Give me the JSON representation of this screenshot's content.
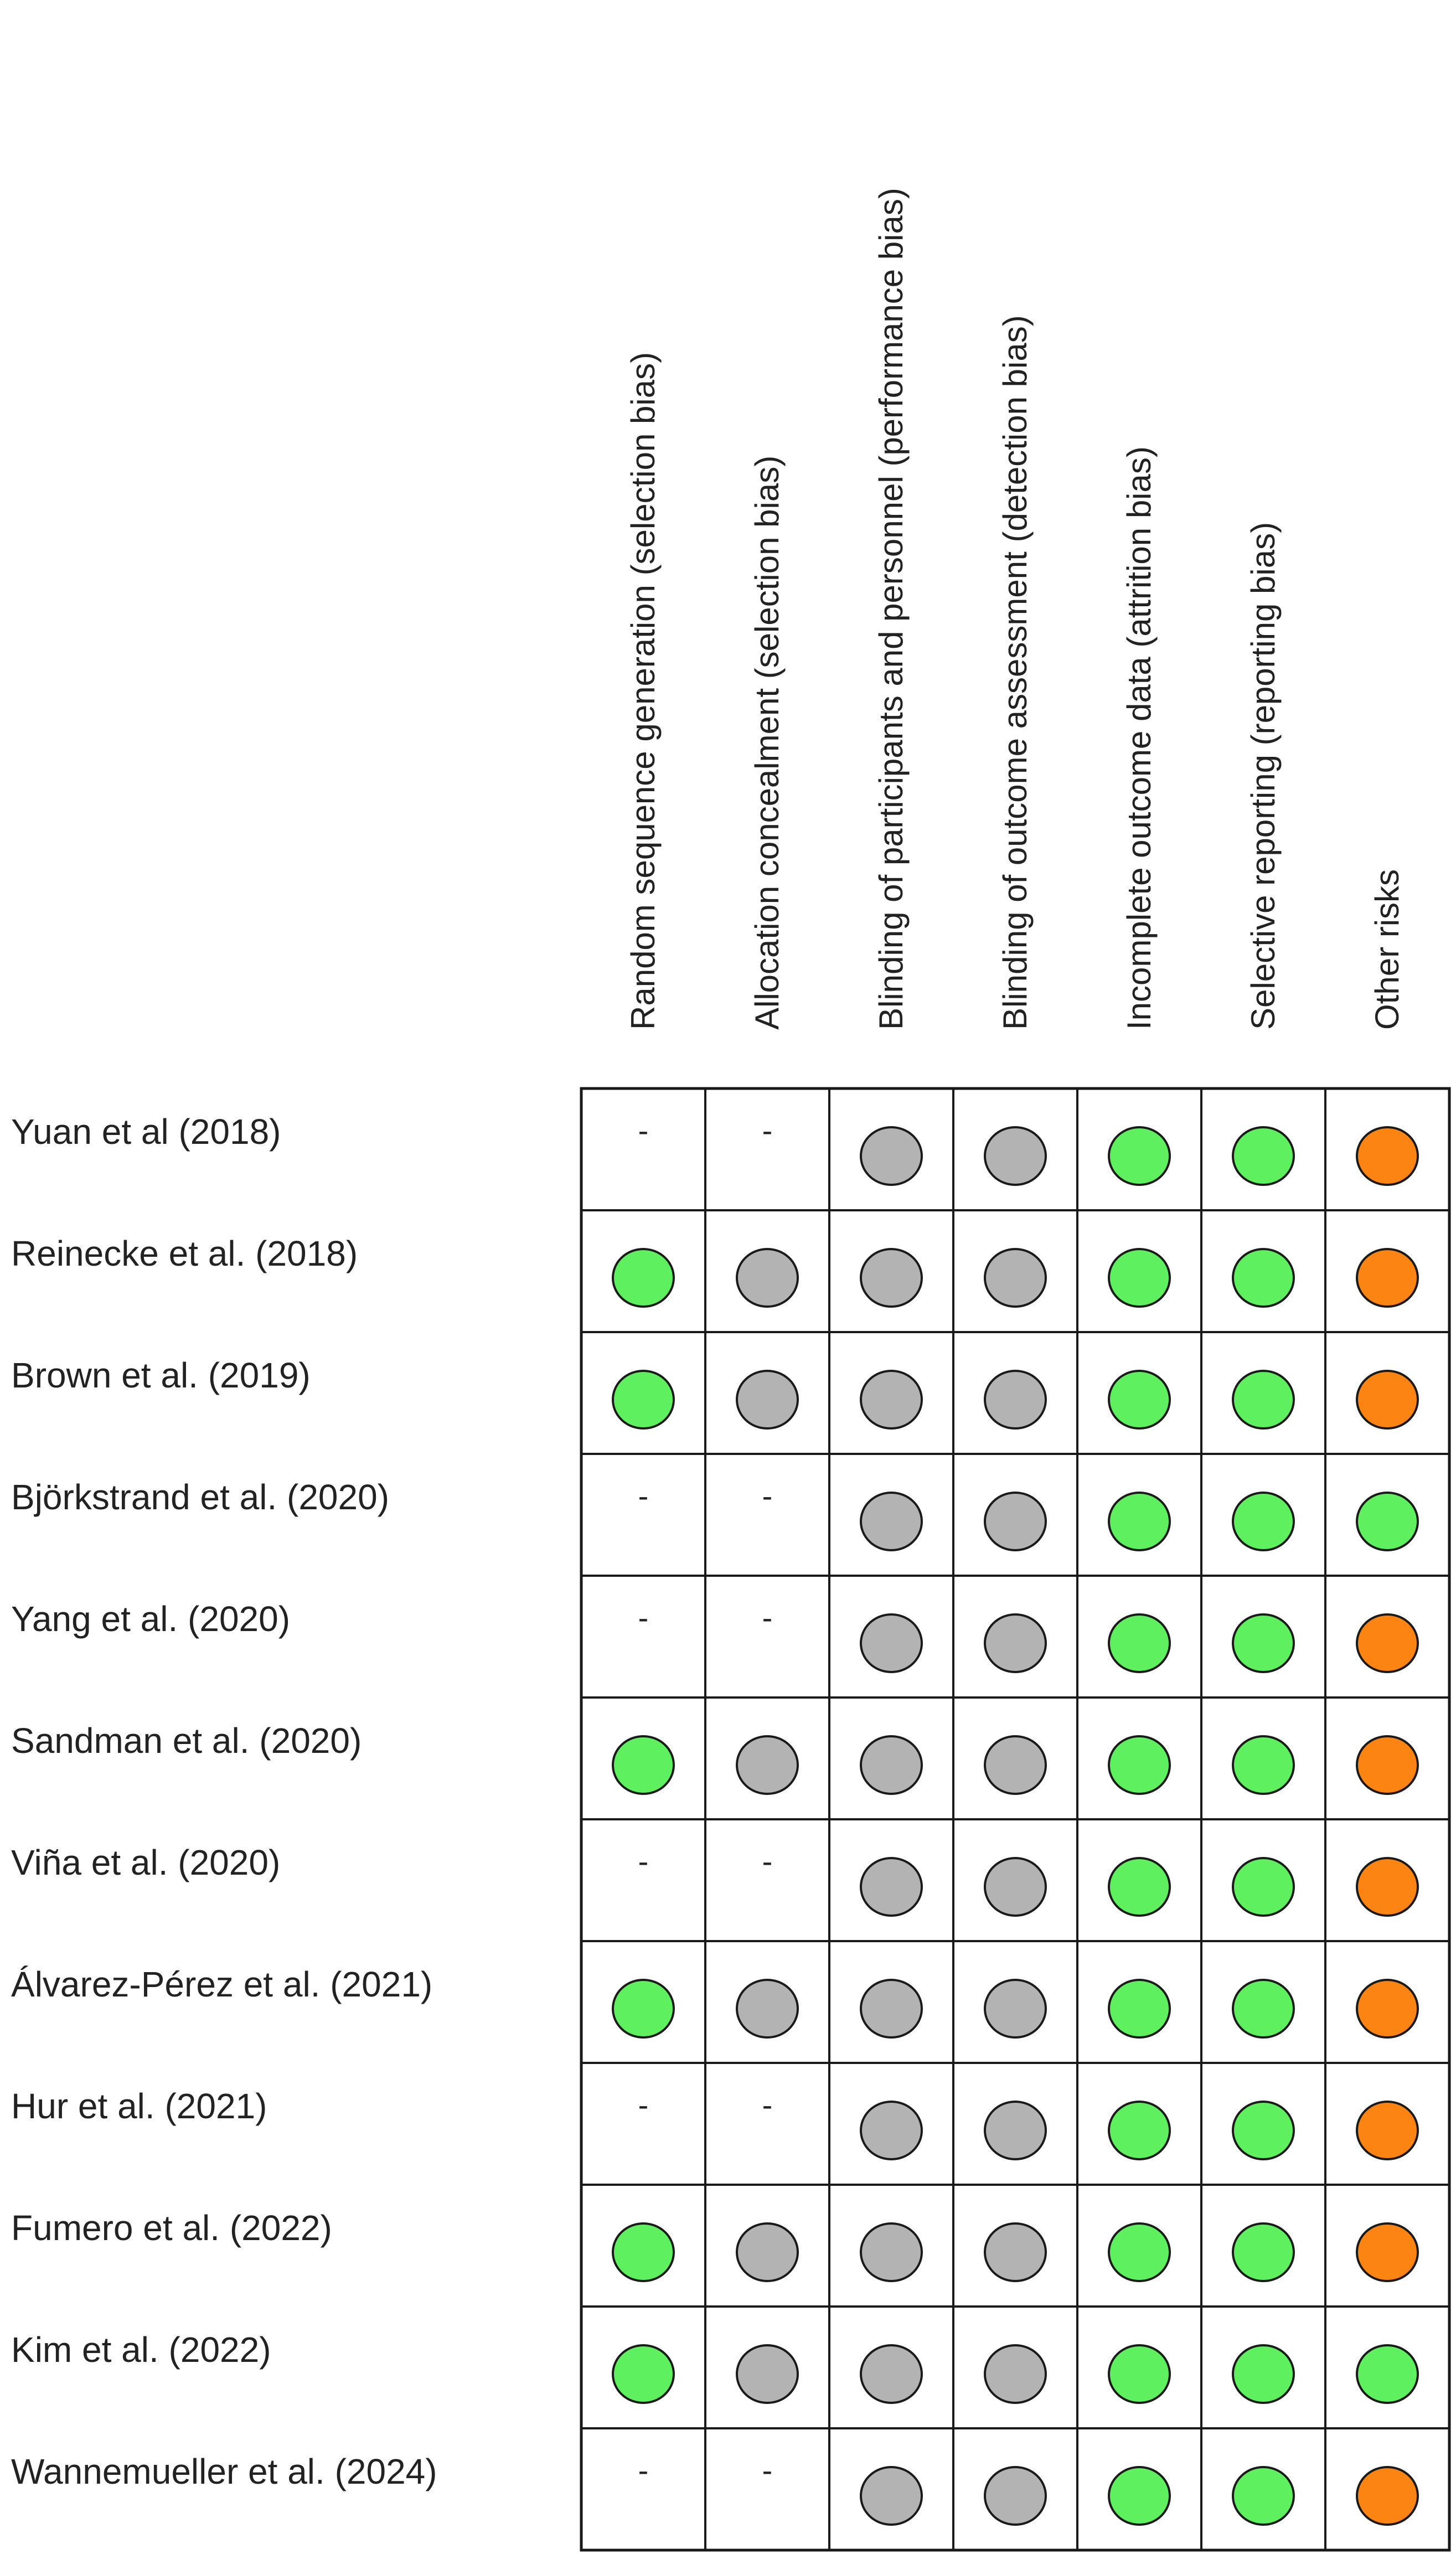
{
  "columns": [
    "Random sequence generation (selection bias)",
    "Allocation concealment (selection bias)",
    "Blinding of participants and personnel (performance bias)",
    "Blinding of outcome assessment (detection bias)",
    "Incomplete outcome data (attrition bias)",
    "Selective reporting (reporting bias)",
    "Other risks"
  ],
  "legend_colors": {
    "low": "#5ef05e",
    "unclear": "#b3b3b3",
    "high": "#fb8412"
  },
  "not_assessed_symbol": "-",
  "rows": [
    {
      "study": "Yuan et al (2018)",
      "ratings": [
        "-",
        "-",
        "unclear",
        "unclear",
        "low",
        "low",
        "high"
      ]
    },
    {
      "study": "Reinecke et al. (2018)",
      "ratings": [
        "low",
        "unclear",
        "unclear",
        "unclear",
        "low",
        "low",
        "high"
      ]
    },
    {
      "study": "Brown et al. (2019)",
      "ratings": [
        "low",
        "unclear",
        "unclear",
        "unclear",
        "low",
        "low",
        "high"
      ]
    },
    {
      "study": "Björkstrand et al. (2020)",
      "ratings": [
        "-",
        "-",
        "unclear",
        "unclear",
        "low",
        "low",
        "low"
      ]
    },
    {
      "study": "Yang et al. (2020)",
      "ratings": [
        "-",
        "-",
        "unclear",
        "unclear",
        "low",
        "low",
        "high"
      ]
    },
    {
      "study": "Sandman et al. (2020)",
      "ratings": [
        "low",
        "unclear",
        "unclear",
        "unclear",
        "low",
        "low",
        "high"
      ]
    },
    {
      "study": "Viña et al. (2020)",
      "ratings": [
        "-",
        "-",
        "unclear",
        "unclear",
        "low",
        "low",
        "high"
      ]
    },
    {
      "study": "Álvarez-Pérez et al. (2021)",
      "ratings": [
        "low",
        "unclear",
        "unclear",
        "unclear",
        "low",
        "low",
        "high"
      ]
    },
    {
      "study": "Hur et al. (2021)",
      "ratings": [
        "-",
        "-",
        "unclear",
        "unclear",
        "low",
        "low",
        "high"
      ]
    },
    {
      "study": "Fumero et al. (2022)",
      "ratings": [
        "low",
        "unclear",
        "unclear",
        "unclear",
        "low",
        "low",
        "high"
      ]
    },
    {
      "study": "Kim et al. (2022)",
      "ratings": [
        "low",
        "unclear",
        "unclear",
        "unclear",
        "low",
        "low",
        "low"
      ]
    },
    {
      "study": "Wannemueller et al. (2024)",
      "ratings": [
        "-",
        "-",
        "unclear",
        "unclear",
        "low",
        "low",
        "high"
      ]
    }
  ]
}
